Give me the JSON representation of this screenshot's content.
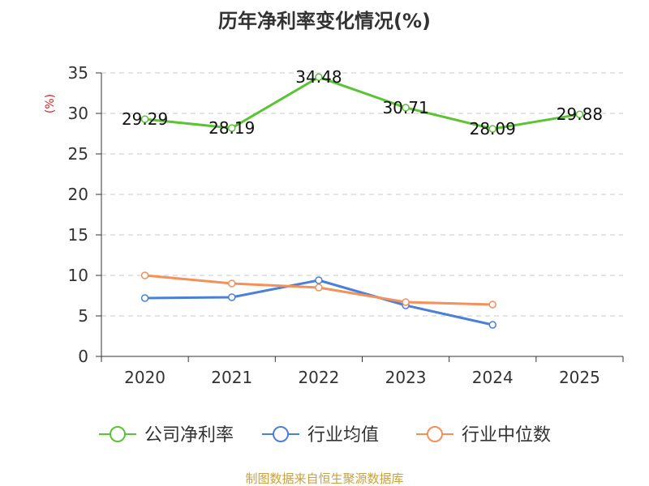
{
  "chart_data": {
    "type": "line",
    "title": "历年净利率变化情况(%)",
    "xlabel": "",
    "ylabel": "(%)",
    "categories": [
      "2020",
      "2021",
      "2022",
      "2023",
      "2024",
      "2025"
    ],
    "ylim": [
      0,
      35
    ],
    "yticks": [
      0,
      5,
      10,
      15,
      20,
      25,
      30,
      35
    ],
    "grid": true,
    "legend_position": "bottom",
    "series": [
      {
        "name": "公司净利率",
        "color": "#5bc434",
        "values": [
          29.29,
          28.19,
          34.48,
          30.71,
          28.09,
          29.88
        ],
        "labels": [
          "29.29",
          "28.19",
          "34.48",
          "30.71",
          "28.09",
          "29.88"
        ]
      },
      {
        "name": "行业均值",
        "color": "#4b7fd8",
        "values": [
          7.2,
          7.3,
          9.4,
          6.3,
          3.9,
          null
        ]
      },
      {
        "name": "行业中位数",
        "color": "#f4905a",
        "values": [
          10.0,
          9.0,
          8.5,
          6.7,
          6.4,
          null
        ]
      }
    ],
    "source": "制图数据来自恒生聚源数据库"
  }
}
